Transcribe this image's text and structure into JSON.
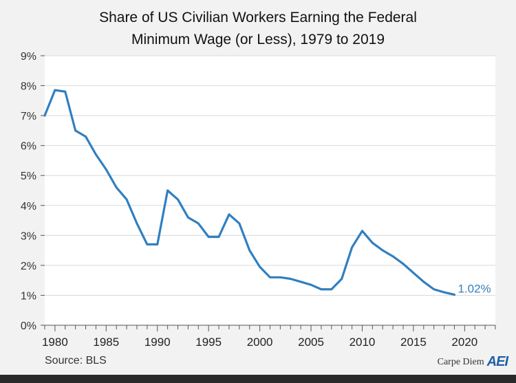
{
  "header": {
    "title_line1": "Share of US Civilian Workers Earning the Federal",
    "title_line2": "Minimum Wage (or Less), 1979 to 2019"
  },
  "footer": {
    "source": "Source: BLS",
    "brand_text": "Carpe Diem",
    "brand_logo": "AEI"
  },
  "colors": {
    "line": "#2f7fc1",
    "plot_bg": "#ffffff",
    "grid": "#d9d9d9"
  },
  "chart_data": {
    "type": "line",
    "title": "Share of US Civilian Workers Earning the Federal Minimum Wage (or Less), 1979 to 2019",
    "xlabel": "",
    "ylabel": "",
    "xlim": [
      1979,
      2023
    ],
    "ylim": [
      0,
      9
    ],
    "grid": true,
    "x_ticks": [
      "1980",
      "1985",
      "1990",
      "1995",
      "2000",
      "2005",
      "2010",
      "2015",
      "2020"
    ],
    "y_ticks": [
      "0%",
      "1%",
      "2%",
      "3%",
      "4%",
      "5%",
      "6%",
      "7%",
      "8%",
      "9%"
    ],
    "annotation": "1.02%",
    "series": [
      {
        "x": [
          1979,
          1980,
          1981,
          1982,
          1983,
          1984,
          1985,
          1986,
          1987,
          1988,
          1989,
          1990,
          1991,
          1992,
          1993,
          1994,
          1995,
          1996,
          1997,
          1998,
          1999,
          2000,
          2001,
          2002,
          2003,
          2004,
          2005,
          2006,
          2007,
          2008,
          2009,
          2010,
          2011,
          2012,
          2013,
          2014,
          2015,
          2016,
          2017,
          2018,
          2019
        ],
        "y": [
          7.0,
          7.85,
          7.8,
          6.5,
          6.3,
          5.7,
          5.2,
          4.6,
          4.2,
          3.4,
          2.7,
          2.7,
          4.5,
          4.2,
          3.6,
          3.4,
          2.95,
          2.95,
          3.7,
          3.4,
          2.5,
          1.95,
          1.6,
          1.6,
          1.55,
          1.45,
          1.35,
          1.2,
          1.2,
          1.55,
          2.6,
          3.15,
          2.75,
          2.5,
          2.3,
          2.05,
          1.75,
          1.45,
          1.2,
          1.1,
          1.02
        ]
      }
    ]
  }
}
